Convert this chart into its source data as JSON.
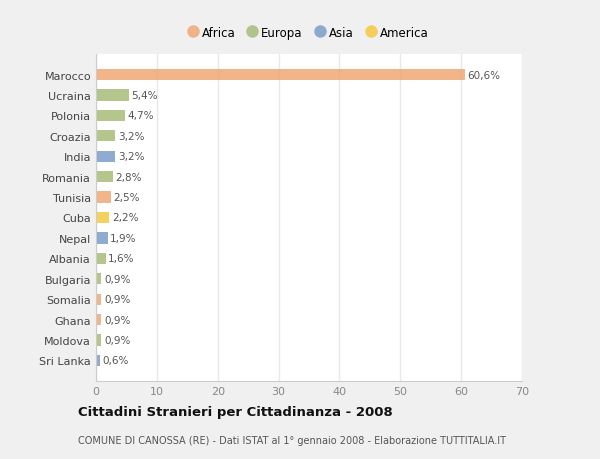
{
  "countries": [
    "Marocco",
    "Ucraina",
    "Polonia",
    "Croazia",
    "India",
    "Romania",
    "Tunisia",
    "Cuba",
    "Nepal",
    "Albania",
    "Bulgaria",
    "Somalia",
    "Ghana",
    "Moldova",
    "Sri Lanka"
  ],
  "values": [
    60.6,
    5.4,
    4.7,
    3.2,
    3.2,
    2.8,
    2.5,
    2.2,
    1.9,
    1.6,
    0.9,
    0.9,
    0.9,
    0.9,
    0.6
  ],
  "labels": [
    "60,6%",
    "5,4%",
    "4,7%",
    "3,2%",
    "3,2%",
    "2,8%",
    "2,5%",
    "2,2%",
    "1,9%",
    "1,6%",
    "0,9%",
    "0,9%",
    "0,9%",
    "0,9%",
    "0,6%"
  ],
  "colors": [
    "#F0A875",
    "#A8BC78",
    "#A8BC78",
    "#A8BC78",
    "#7B9EC8",
    "#A8BC78",
    "#F0A875",
    "#F5C842",
    "#7B9EC8",
    "#A8BC78",
    "#A8BC78",
    "#F0A875",
    "#F0A875",
    "#A8BC78",
    "#7B9EC8"
  ],
  "legend_labels": [
    "Africa",
    "Europa",
    "Asia",
    "America"
  ],
  "legend_colors": [
    "#F0A875",
    "#A8BC78",
    "#7B9EC8",
    "#F5C842"
  ],
  "title": "Cittadini Stranieri per Cittadinanza - 2008",
  "subtitle": "COMUNE DI CANOSSA (RE) - Dati ISTAT al 1° gennaio 2008 - Elaborazione TUTTITALIA.IT",
  "xlim": [
    0,
    70
  ],
  "xticks": [
    0,
    10,
    20,
    30,
    40,
    50,
    60,
    70
  ],
  "background_color": "#f0f0f0",
  "plot_bg_color": "#ffffff",
  "grid_color": "#e8e8e8",
  "bar_alpha": 0.85,
  "bar_height": 0.55
}
